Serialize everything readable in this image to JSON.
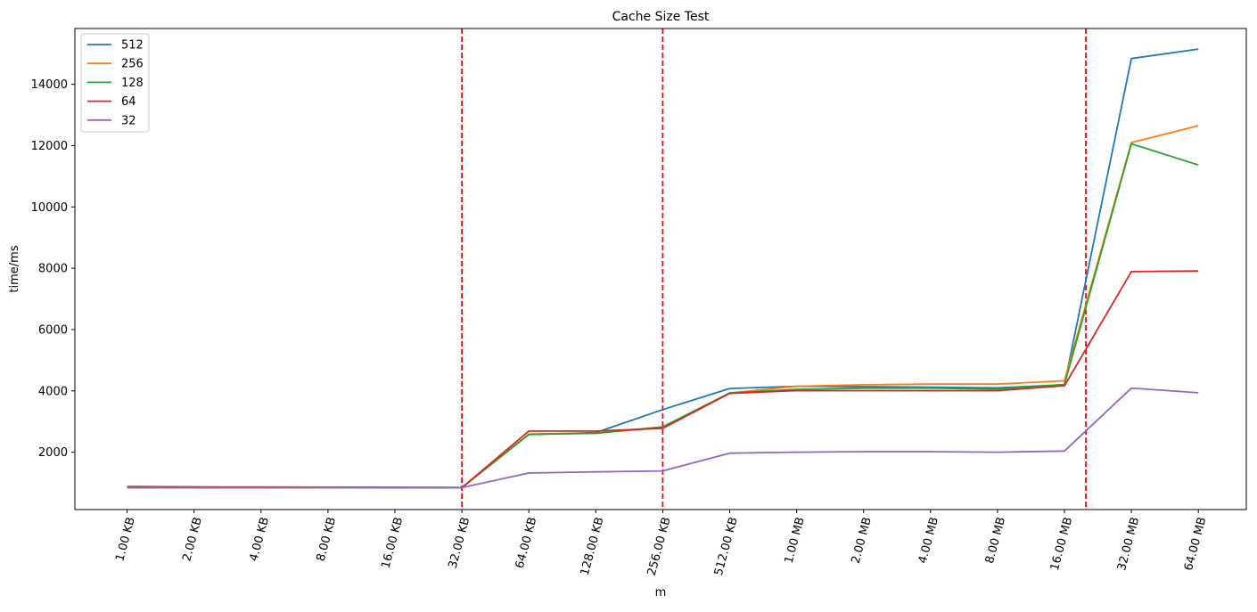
{
  "chart_data": {
    "type": "line",
    "title": "Cache Size Test",
    "xlabel": "m",
    "ylabel": "time/ms",
    "categories": [
      "1.00 KB",
      "2.00 KB",
      "4.00 KB",
      "8.00 KB",
      "16.00 KB",
      "32.00 KB",
      "64.00 KB",
      "128.00 KB",
      "256.00 KB",
      "512.00 KB",
      "1.00 MB",
      "2.00 MB",
      "4.00 MB",
      "8.00 MB",
      "16.00 MB",
      "32.00 MB",
      "64.00 MB"
    ],
    "yticks": [
      2000,
      4000,
      6000,
      8000,
      10000,
      12000,
      14000
    ],
    "ylim": [
      130,
      15820
    ],
    "grid": false,
    "legend_position": "top-left",
    "series": [
      {
        "name": "512",
        "color": "#1f77b4",
        "values": [
          880,
          870,
          865,
          860,
          855,
          850,
          2580,
          2640,
          3390,
          4080,
          4150,
          4140,
          4120,
          4100,
          4200,
          14840,
          15150
        ]
      },
      {
        "name": "256",
        "color": "#ff7f0e",
        "values": [
          860,
          855,
          850,
          850,
          845,
          845,
          2590,
          2620,
          2810,
          3930,
          4150,
          4200,
          4220,
          4220,
          4330,
          12100,
          12650
        ]
      },
      {
        "name": "128",
        "color": "#2ca02c",
        "values": [
          860,
          855,
          850,
          850,
          845,
          845,
          2580,
          2620,
          2830,
          3930,
          4050,
          4090,
          4090,
          4060,
          4210,
          12060,
          11370
        ]
      },
      {
        "name": "64",
        "color": "#d62728",
        "values": [
          850,
          850,
          850,
          850,
          845,
          845,
          2690,
          2690,
          2780,
          3920,
          4010,
          4010,
          4010,
          4010,
          4170,
          7890,
          7910
        ]
      },
      {
        "name": "32",
        "color": "#9467bd",
        "values": [
          840,
          840,
          840,
          845,
          840,
          845,
          1320,
          1360,
          1390,
          1970,
          2000,
          2020,
          2020,
          2000,
          2040,
          4090,
          3940
        ]
      }
    ],
    "reference_lines": {
      "color": "#ff0000",
      "x_positions": [
        5,
        8,
        14.32
      ]
    }
  }
}
